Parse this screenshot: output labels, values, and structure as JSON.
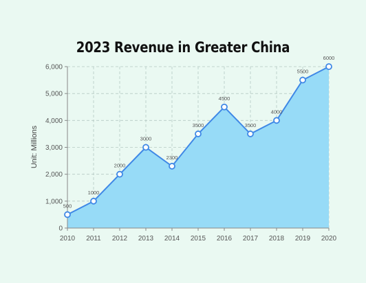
{
  "chart_data": {
    "type": "area",
    "title": "2023 Revenue in Greater China",
    "xlabel": "",
    "ylabel": "Unit: Millions",
    "x": [
      "2010",
      "2011",
      "2012",
      "2013",
      "2014",
      "2015",
      "2016",
      "2017",
      "2018",
      "2019",
      "2020"
    ],
    "series": [
      {
        "values": [
          500,
          1000,
          2000,
          3000,
          2300,
          3500,
          4500,
          3500,
          4000,
          5500,
          6000
        ],
        "data_labels": [
          "500",
          "1000",
          "2000",
          "3000",
          "2300",
          "3500",
          "4500",
          "3500",
          "4000",
          "5500",
          "6000"
        ]
      }
    ],
    "ylim": [
      0,
      6000
    ],
    "y_ticks": [
      0,
      1000,
      2000,
      3000,
      4000,
      5000,
      6000
    ],
    "y_tick_labels": [
      "0",
      "1,000",
      "2,000",
      "3,000",
      "4,000",
      "5,000",
      "6,000"
    ],
    "grid": true,
    "grid_style": "dashed",
    "legend": false,
    "colors": {
      "background": "#eaf9f2",
      "area_fill": "#97dbf7",
      "line": "#3f88e6",
      "marker_fill": "#ffffff",
      "grid": "#b5c9c3",
      "axis": "#888888",
      "text": "#555555"
    }
  }
}
